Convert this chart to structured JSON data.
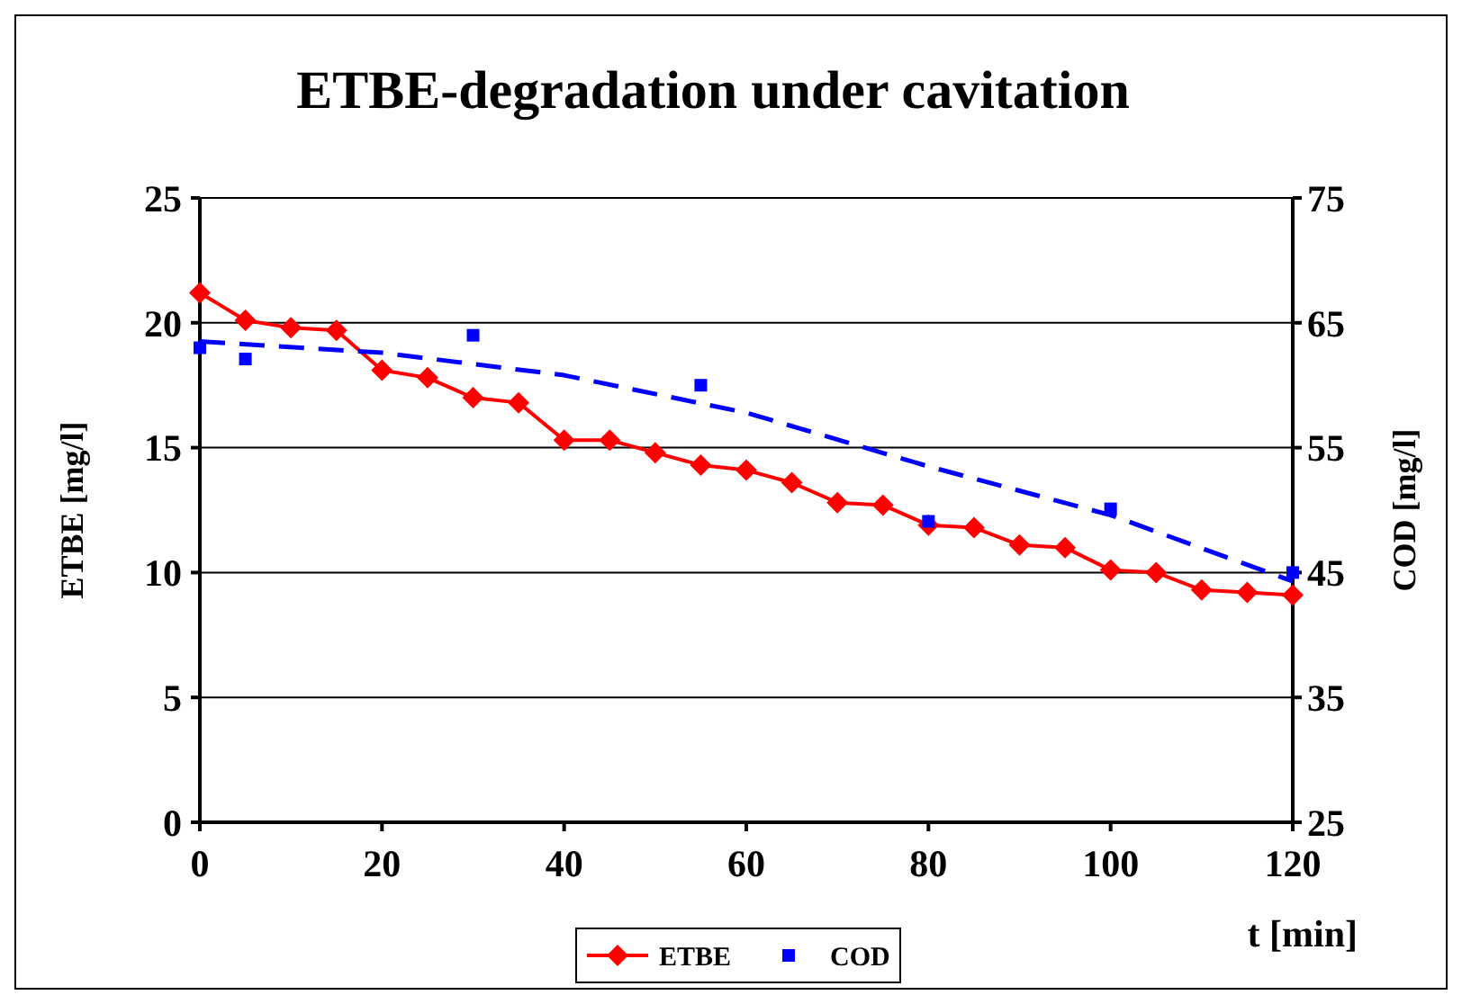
{
  "chart_data": {
    "type": "line",
    "title": "ETBE-degradation under cavitation",
    "xlabel": "t [min]",
    "ylabel": "ETBE [mg/l]",
    "y2label": "COD [mg/l]",
    "xlim": [
      0,
      120
    ],
    "xticks": [
      0,
      20,
      40,
      60,
      80,
      100,
      120
    ],
    "ylim": [
      0,
      25
    ],
    "yticks": [
      0,
      5,
      10,
      15,
      20,
      25
    ],
    "y2lim": [
      25,
      75
    ],
    "y2ticks": [
      25,
      35,
      45,
      55,
      65,
      75
    ],
    "grid": "y",
    "legend": "bottom",
    "series": [
      {
        "name": "ETBE",
        "color": "#ff0000",
        "marker": "diamond",
        "line_style": "solid",
        "x": [
          0,
          5,
          10,
          15,
          20,
          25,
          30,
          35,
          40,
          45,
          50,
          55,
          60,
          65,
          70,
          75,
          80,
          85,
          90,
          95,
          100,
          105,
          110,
          115,
          120
        ],
        "values": [
          21.2,
          20.1,
          19.8,
          19.7,
          18.1,
          17.8,
          17.0,
          16.8,
          15.3,
          15.3,
          14.8,
          14.3,
          14.1,
          13.6,
          12.8,
          12.7,
          11.9,
          11.8,
          11.1,
          11.0,
          10.1,
          10.0,
          9.3,
          9.2,
          9.1
        ]
      },
      {
        "name": "COD",
        "type": "scatter",
        "axis": "y2",
        "color": "#0000ff",
        "marker": "square",
        "x": [
          0,
          5,
          30,
          55,
          80,
          100,
          120
        ],
        "values": [
          63.0,
          62.1,
          64.0,
          60.0,
          49.1,
          50.1,
          45.0
        ]
      },
      {
        "axis": "y2",
        "color": "#0000ff",
        "marker": "none",
        "line_style": "dashed",
        "x": [
          0,
          20,
          40,
          60,
          80,
          100,
          120
        ],
        "values": [
          63.5,
          62.6,
          60.8,
          57.8,
          53.5,
          49.6,
          44.3
        ]
      }
    ]
  }
}
